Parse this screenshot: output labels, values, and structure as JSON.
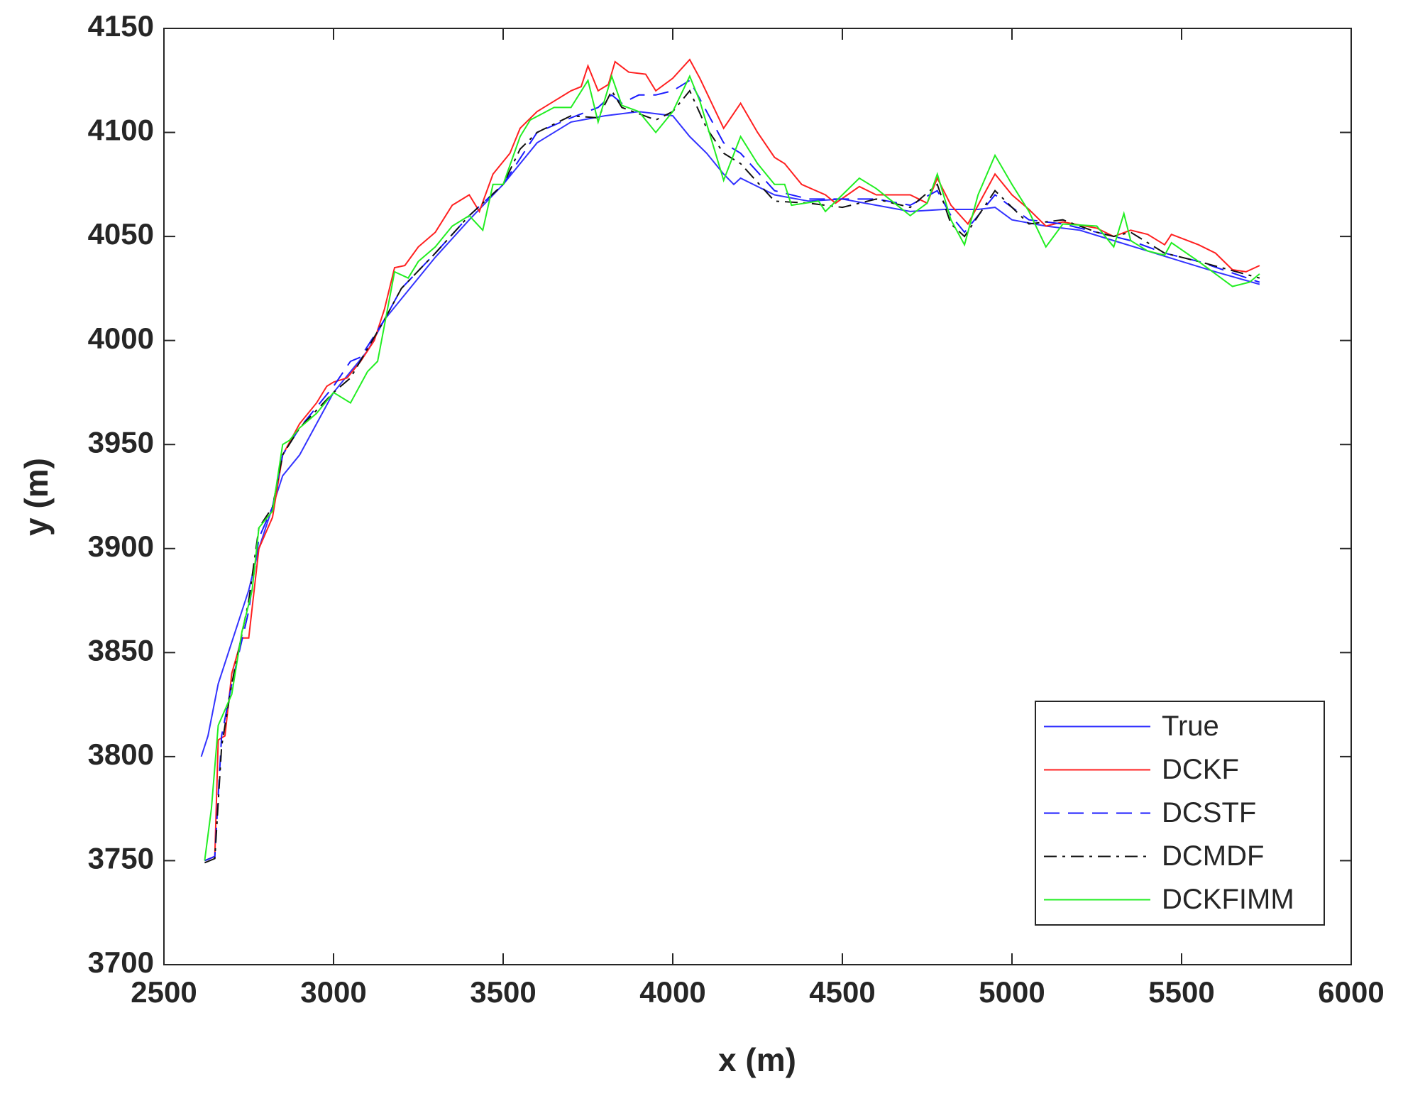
{
  "chart_data": {
    "type": "line",
    "xlabel": "x (m)",
    "ylabel": "y (m)",
    "xlim": [
      2500,
      6000
    ],
    "ylim": [
      3700,
      4150
    ],
    "xticks": [
      2500,
      3000,
      3500,
      4000,
      4500,
      5000,
      5500,
      6000
    ],
    "yticks": [
      3700,
      3750,
      3800,
      3850,
      3900,
      3950,
      4000,
      4050,
      4100,
      4150
    ],
    "grid": false,
    "legend": "lower right",
    "series": [
      {
        "name": "True",
        "color": "#3333ff",
        "dash": "solid",
        "x": [
          2610,
          2630,
          2660,
          2700,
          2750,
          2780,
          2820,
          2850,
          2900,
          2950,
          3000,
          3050,
          3100,
          3150,
          3200,
          3300,
          3400,
          3500,
          3600,
          3700,
          3800,
          3900,
          4000,
          4050,
          4100,
          4150,
          4180,
          4200,
          4300,
          4400,
          4500,
          4600,
          4700,
          4800,
          4900,
          4950,
          5000,
          5100,
          5200,
          5300,
          5400,
          5500,
          5600,
          5730
        ],
        "values": [
          3800,
          3810,
          3835,
          3855,
          3880,
          3900,
          3920,
          3935,
          3945,
          3960,
          3975,
          3985,
          3995,
          4010,
          4020,
          4040,
          4058,
          4075,
          4095,
          4105,
          4108,
          4110,
          4108,
          4098,
          4090,
          4080,
          4075,
          4078,
          4070,
          4067,
          4068,
          4065,
          4062,
          4063,
          4063,
          4064,
          4058,
          4055,
          4053,
          4048,
          4043,
          4038,
          4033,
          4027
        ]
      },
      {
        "name": "DCKF",
        "color": "#ff2020",
        "dash": "solid",
        "x": [
          2620,
          2650,
          2660,
          2680,
          2700,
          2730,
          2750,
          2780,
          2820,
          2850,
          2900,
          2950,
          2980,
          3000,
          3040,
          3080,
          3120,
          3150,
          3180,
          3210,
          3250,
          3300,
          3350,
          3400,
          3430,
          3470,
          3520,
          3550,
          3600,
          3700,
          3730,
          3750,
          3780,
          3810,
          3830,
          3870,
          3920,
          3950,
          4000,
          4050,
          4080,
          4150,
          4200,
          4250,
          4300,
          4330,
          4380,
          4450,
          4480,
          4550,
          4600,
          4700,
          4750,
          4780,
          4820,
          4870,
          4950,
          5000,
          5050,
          5100,
          5150,
          5250,
          5300,
          5350,
          5400,
          5450,
          5470,
          5550,
          5600,
          5650,
          5690,
          5730
        ],
        "values": [
          3750,
          3752,
          3808,
          3810,
          3840,
          3857,
          3857,
          3900,
          3915,
          3945,
          3960,
          3970,
          3978,
          3980,
          3982,
          3990,
          4000,
          4015,
          4035,
          4036,
          4045,
          4052,
          4065,
          4070,
          4062,
          4080,
          4090,
          4102,
          4110,
          4120,
          4122,
          4132,
          4120,
          4123,
          4134,
          4129,
          4128,
          4120,
          4126,
          4135,
          4126,
          4102,
          4114,
          4100,
          4088,
          4085,
          4075,
          4070,
          4066,
          4074,
          4070,
          4070,
          4066,
          4078,
          4065,
          4056,
          4080,
          4070,
          4063,
          4055,
          4057,
          4054,
          4050,
          4053,
          4051,
          4046,
          4051,
          4046,
          4042,
          4034,
          4033,
          4036
        ]
      },
      {
        "name": "DCSTF",
        "color": "#1a1aff",
        "dash": "dashed",
        "x": [
          2620,
          2650,
          2670,
          2700,
          2750,
          2780,
          2820,
          2850,
          2900,
          3000,
          3050,
          3080,
          3150,
          3200,
          3300,
          3400,
          3500,
          3600,
          3700,
          3780,
          3820,
          3850,
          3900,
          3950,
          4000,
          4050,
          4100,
          4150,
          4200,
          4300,
          4400,
          4500,
          4600,
          4700,
          4780,
          4820,
          4860,
          4950,
          5050,
          5150,
          5250,
          5350,
          5450,
          5550,
          5730
        ],
        "values": [
          3750,
          3752,
          3810,
          3835,
          3870,
          3905,
          3920,
          3945,
          3958,
          3978,
          3990,
          3992,
          4010,
          4025,
          4042,
          4060,
          4075,
          4100,
          4107,
          4112,
          4118,
          4114,
          4118,
          4118,
          4120,
          4125,
          4110,
          4095,
          4090,
          4072,
          4068,
          4068,
          4068,
          4065,
          4072,
          4060,
          4052,
          4070,
          4058,
          4056,
          4052,
          4048,
          4042,
          4038,
          4028
        ]
      },
      {
        "name": "DCMDF",
        "color": "#111111",
        "dash": "dashdot",
        "x": [
          2620,
          2650,
          2670,
          2700,
          2750,
          2780,
          2820,
          2850,
          2900,
          3000,
          3050,
          3150,
          3200,
          3300,
          3400,
          3500,
          3550,
          3600,
          3700,
          3780,
          3820,
          3850,
          3950,
          4000,
          4050,
          4100,
          4150,
          4200,
          4300,
          4400,
          4500,
          4600,
          4700,
          4780,
          4820,
          4860,
          4950,
          5050,
          5150,
          5250,
          5300,
          5350,
          5450,
          5550,
          5730
        ],
        "values": [
          3749,
          3751,
          3805,
          3835,
          3875,
          3910,
          3920,
          3945,
          3958,
          3975,
          3982,
          4010,
          4025,
          4042,
          4060,
          4075,
          4092,
          4100,
          4108,
          4107,
          4120,
          4112,
          4106,
          4110,
          4120,
          4102,
          4090,
          4085,
          4067,
          4066,
          4064,
          4068,
          4064,
          4075,
          4056,
          4050,
          4072,
          4056,
          4058,
          4052,
          4050,
          4052,
          4042,
          4038,
          4030
        ]
      },
      {
        "name": "DCKFIMM",
        "color": "#22ee22",
        "dash": "solid",
        "x": [
          2620,
          2640,
          2660,
          2700,
          2730,
          2760,
          2780,
          2820,
          2850,
          2870,
          2900,
          2950,
          3000,
          3050,
          3100,
          3130,
          3180,
          3220,
          3250,
          3300,
          3350,
          3400,
          3440,
          3470,
          3500,
          3550,
          3580,
          3650,
          3700,
          3750,
          3780,
          3820,
          3850,
          3900,
          3950,
          4000,
          4050,
          4080,
          4150,
          4200,
          4250,
          4300,
          4330,
          4350,
          4430,
          4450,
          4500,
          4550,
          4600,
          4700,
          4750,
          4780,
          4820,
          4860,
          4900,
          4950,
          5000,
          5050,
          5100,
          5150,
          5250,
          5300,
          5330,
          5350,
          5400,
          5450,
          5470,
          5550,
          5650,
          5700,
          5730
        ],
        "values": [
          3750,
          3775,
          3815,
          3830,
          3860,
          3880,
          3910,
          3918,
          3950,
          3952,
          3958,
          3965,
          3975,
          3970,
          3985,
          3990,
          4033,
          4030,
          4038,
          4045,
          4055,
          4060,
          4053,
          4075,
          4075,
          4098,
          4106,
          4112,
          4112,
          4125,
          4105,
          4127,
          4113,
          4110,
          4100,
          4110,
          4127,
          4115,
          4077,
          4098,
          4085,
          4075,
          4075,
          4065,
          4067,
          4062,
          4070,
          4078,
          4073,
          4060,
          4066,
          4080,
          4058,
          4046,
          4070,
          4089,
          4075,
          4062,
          4045,
          4056,
          4055,
          4045,
          4061,
          4048,
          4043,
          4041,
          4047,
          4038,
          4026,
          4028,
          4032
        ]
      }
    ]
  }
}
